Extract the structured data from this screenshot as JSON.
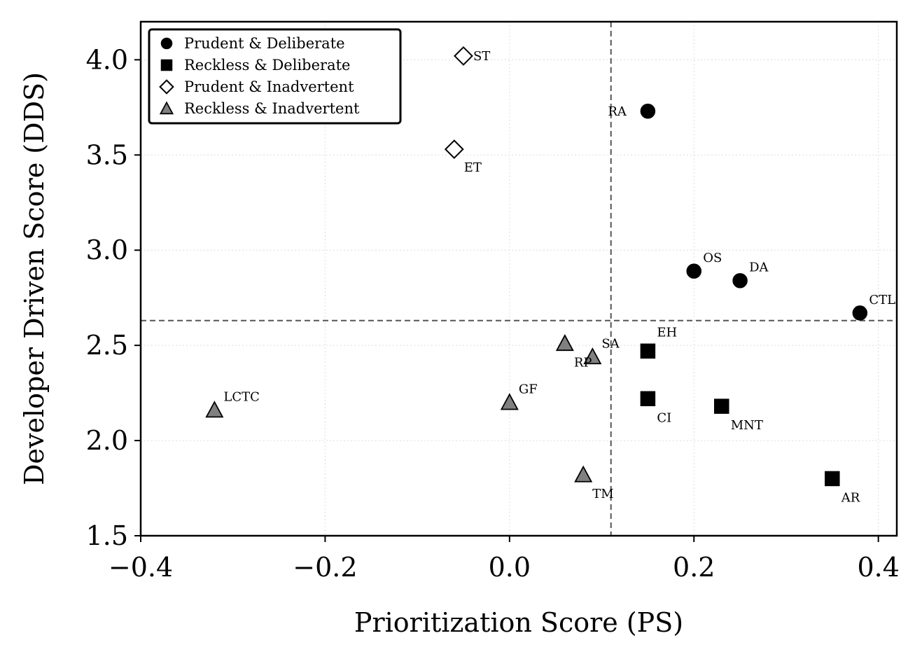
{
  "chart_data": {
    "type": "scatter",
    "xlabel": "Prioritization Score (PS)",
    "ylabel": "Developer Driven Score (DDS)",
    "xlim": [
      -0.4,
      0.42
    ],
    "ylim": [
      1.5,
      4.2
    ],
    "xticks": [
      -0.4,
      -0.2,
      0.0,
      0.2,
      0.4
    ],
    "xtick_labels": [
      "−0.4",
      "−0.2",
      "0.0",
      "0.2",
      "0.4"
    ],
    "yticks": [
      1.5,
      2.0,
      2.5,
      3.0,
      3.5,
      4.0
    ],
    "ytick_labels": [
      "1.5",
      "2.0",
      "2.5",
      "3.0",
      "3.5",
      "4.0"
    ],
    "grid": true,
    "reference_lines": {
      "x": 0.11,
      "y": 2.63
    },
    "legend_position": "upper-left",
    "series": [
      {
        "name": "Prudent & Deliberate",
        "marker": "circle",
        "color": "#000000",
        "points": [
          {
            "label": "RA",
            "x": 0.15,
            "y": 3.73
          },
          {
            "label": "OS",
            "x": 0.2,
            "y": 2.89
          },
          {
            "label": "DA",
            "x": 0.25,
            "y": 2.84
          },
          {
            "label": "CTL",
            "x": 0.38,
            "y": 2.67
          }
        ]
      },
      {
        "name": "Reckless & Deliberate",
        "marker": "square",
        "color": "#000000",
        "points": [
          {
            "label": "EH",
            "x": 0.15,
            "y": 2.47
          },
          {
            "label": "CI",
            "x": 0.15,
            "y": 2.22
          },
          {
            "label": "MNT",
            "x": 0.23,
            "y": 2.18
          },
          {
            "label": "AR",
            "x": 0.35,
            "y": 1.8
          }
        ]
      },
      {
        "name": "Prudent & Inadvertent",
        "marker": "diamond",
        "color": "#ffffff",
        "points": [
          {
            "label": "ST",
            "x": -0.05,
            "y": 4.02
          },
          {
            "label": "ET",
            "x": -0.06,
            "y": 3.53
          }
        ]
      },
      {
        "name": "Reckless & Inadvertent",
        "marker": "triangle",
        "color": "#808080",
        "points": [
          {
            "label": "RP",
            "x": 0.06,
            "y": 2.51
          },
          {
            "label": "SA",
            "x": 0.09,
            "y": 2.44
          },
          {
            "label": "GF",
            "x": 0.0,
            "y": 2.2
          },
          {
            "label": "LCTC",
            "x": -0.32,
            "y": 2.16
          },
          {
            "label": "TM",
            "x": 0.08,
            "y": 1.82
          }
        ]
      }
    ]
  }
}
